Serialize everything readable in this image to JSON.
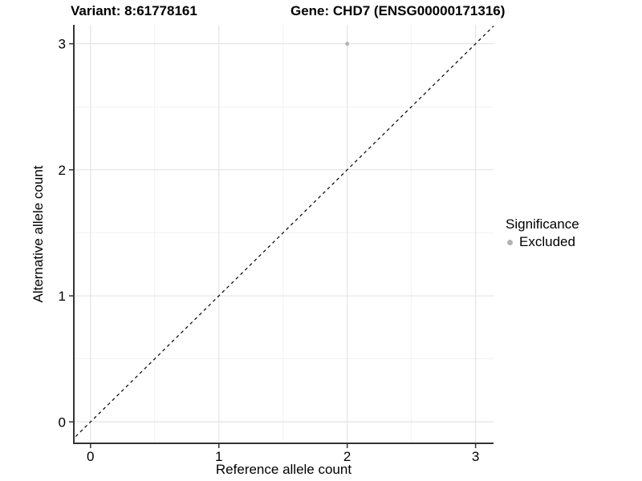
{
  "chart_data": {
    "type": "scatter",
    "title_left": "Variant: 8:61778161",
    "title_right": "Gene: CHD7 (ENSG00000171316)",
    "xlabel": "Reference allele count",
    "ylabel": "Alternative allele count",
    "x_ticks": [
      0,
      1,
      2,
      3
    ],
    "y_ticks": [
      0,
      1,
      2,
      3
    ],
    "x_minor_ticks": [
      0.5,
      1.5,
      2.5
    ],
    "y_minor_ticks": [
      0.5,
      1.5,
      2.5
    ],
    "xlim": [
      -0.13,
      3.14
    ],
    "ylim": [
      -0.17,
      3.15
    ],
    "grid": "major+minor",
    "legend_position": "right",
    "series": [
      {
        "name": "Excluded",
        "color": "#b3b3b3",
        "points": [
          {
            "x": 2,
            "y": 3
          }
        ]
      }
    ],
    "reference_line": {
      "kind": "identity",
      "slope": 1,
      "intercept": 0,
      "line_style": "dashed",
      "color": "#000000"
    },
    "legend": {
      "title": "Significance",
      "items": [
        {
          "label": "Excluded",
          "color": "#b3b3b3"
        }
      ]
    }
  },
  "colors": {
    "background": "#ffffff",
    "grid_major": "#e4e4e4",
    "grid_minor": "#f1f1f1",
    "axis_line": "#333333",
    "tick_mark": "#333333",
    "text": "#000000"
  }
}
